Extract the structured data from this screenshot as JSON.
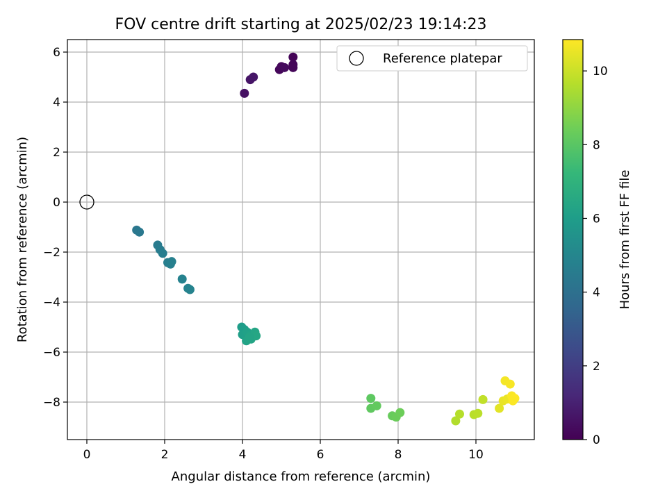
{
  "chart_data": {
    "type": "scatter",
    "title": "FOV centre drift starting at 2025/02/23 19:14:23",
    "xlabel": "Angular distance from reference (arcmin)",
    "ylabel": "Rotation from reference (arcmin)",
    "xlim": [
      -0.5,
      11.5
    ],
    "ylim": [
      -9.5,
      6.5
    ],
    "xticks": [
      0,
      2,
      4,
      6,
      8,
      10
    ],
    "yticks": [
      -8,
      -6,
      -4,
      -2,
      0,
      2,
      4,
      6
    ],
    "xtick_labels": [
      "0",
      "2",
      "4",
      "6",
      "8",
      "10"
    ],
    "ytick_labels": [
      "−8",
      "−6",
      "−4",
      "−2",
      "0",
      "2",
      "4",
      "6"
    ],
    "grid": true,
    "legend": {
      "placement": "top-right",
      "entries": [
        "Reference platepar"
      ]
    },
    "reference_point": {
      "label": "Reference platepar",
      "x": 0,
      "y": 0
    },
    "colormap": "viridis",
    "colorbar": {
      "label": "Hours from first FF file",
      "range": [
        0,
        10.85
      ],
      "ticks": [
        0,
        2,
        4,
        6,
        8,
        10
      ],
      "tick_labels": [
        "0",
        "2",
        "4",
        "6",
        "8",
        "10"
      ]
    },
    "points": [
      {
        "x": 4.05,
        "y": 4.35,
        "c": 0.5
      },
      {
        "x": 4.2,
        "y": 4.9,
        "c": 0.6
      },
      {
        "x": 4.28,
        "y": 5.0,
        "c": 0.65
      },
      {
        "x": 4.95,
        "y": 5.3,
        "c": 0.2
      },
      {
        "x": 5.0,
        "y": 5.42,
        "c": 0.25
      },
      {
        "x": 5.08,
        "y": 5.38,
        "c": 0.3
      },
      {
        "x": 5.3,
        "y": 5.8,
        "c": 0.1
      },
      {
        "x": 5.3,
        "y": 5.5,
        "c": 0.15
      },
      {
        "x": 5.3,
        "y": 5.38,
        "c": 0.18
      },
      {
        "x": 1.28,
        "y": -1.12,
        "c": 4.3
      },
      {
        "x": 1.35,
        "y": -1.2,
        "c": 4.35
      },
      {
        "x": 1.82,
        "y": -1.72,
        "c": 4.5
      },
      {
        "x": 1.88,
        "y": -1.9,
        "c": 4.55
      },
      {
        "x": 1.95,
        "y": -2.05,
        "c": 4.6
      },
      {
        "x": 2.08,
        "y": -2.42,
        "c": 4.65
      },
      {
        "x": 2.15,
        "y": -2.48,
        "c": 4.7
      },
      {
        "x": 2.18,
        "y": -2.38,
        "c": 4.72
      },
      {
        "x": 2.45,
        "y": -3.08,
        "c": 4.8
      },
      {
        "x": 2.6,
        "y": -3.45,
        "c": 4.85
      },
      {
        "x": 2.65,
        "y": -3.5,
        "c": 4.88
      },
      {
        "x": 3.98,
        "y": -5.0,
        "c": 6.0
      },
      {
        "x": 4.05,
        "y": -5.1,
        "c": 6.05
      },
      {
        "x": 4.0,
        "y": -5.3,
        "c": 6.1
      },
      {
        "x": 4.12,
        "y": -5.2,
        "c": 6.15
      },
      {
        "x": 4.2,
        "y": -5.32,
        "c": 6.2
      },
      {
        "x": 4.1,
        "y": -5.55,
        "c": 6.25
      },
      {
        "x": 4.22,
        "y": -5.48,
        "c": 6.3
      },
      {
        "x": 4.32,
        "y": -5.2,
        "c": 6.35
      },
      {
        "x": 4.35,
        "y": -5.35,
        "c": 6.4
      },
      {
        "x": 4.18,
        "y": -5.4,
        "c": 6.32
      },
      {
        "x": 7.3,
        "y": -7.85,
        "c": 8.1
      },
      {
        "x": 7.3,
        "y": -8.25,
        "c": 8.15
      },
      {
        "x": 7.45,
        "y": -8.15,
        "c": 8.2
      },
      {
        "x": 7.85,
        "y": -8.55,
        "c": 8.3
      },
      {
        "x": 7.95,
        "y": -8.6,
        "c": 8.35
      },
      {
        "x": 8.05,
        "y": -8.42,
        "c": 8.4
      },
      {
        "x": 9.48,
        "y": -8.75,
        "c": 9.6
      },
      {
        "x": 9.58,
        "y": -8.48,
        "c": 9.65
      },
      {
        "x": 9.95,
        "y": -8.5,
        "c": 9.7
      },
      {
        "x": 10.05,
        "y": -8.45,
        "c": 9.75
      },
      {
        "x": 10.18,
        "y": -7.9,
        "c": 9.85
      },
      {
        "x": 10.6,
        "y": -8.25,
        "c": 10.4
      },
      {
        "x": 10.7,
        "y": -7.95,
        "c": 10.5
      },
      {
        "x": 10.8,
        "y": -7.88,
        "c": 10.55
      },
      {
        "x": 10.75,
        "y": -7.15,
        "c": 10.7
      },
      {
        "x": 10.88,
        "y": -7.28,
        "c": 10.75
      },
      {
        "x": 10.92,
        "y": -7.75,
        "c": 10.8
      },
      {
        "x": 11.0,
        "y": -7.85,
        "c": 10.85
      },
      {
        "x": 10.95,
        "y": -7.95,
        "c": 10.82
      }
    ]
  }
}
